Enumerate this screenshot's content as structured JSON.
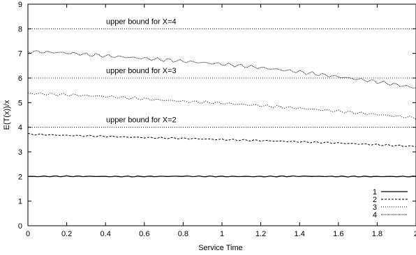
{
  "chart_data": {
    "type": "line",
    "title": "",
    "xlabel": "Service Time",
    "ylabel": "E(T(x))/x",
    "xlim": [
      0,
      2
    ],
    "ylim": [
      0,
      9
    ],
    "xticks": [
      "0",
      "0.2",
      "0.4",
      "0.6",
      "0.8",
      "1",
      "1.2",
      "1.4",
      "1.6",
      "1.8",
      "2"
    ],
    "yticks": [
      "0",
      "1",
      "2",
      "3",
      "4",
      "5",
      "6",
      "7",
      "8",
      "9"
    ],
    "legend_position": "bottom-right",
    "grid": false,
    "series": [
      {
        "name": "1",
        "style": "solid",
        "x": [
          0,
          0.2,
          0.4,
          0.6,
          0.8,
          1.0,
          1.2,
          1.4,
          1.6,
          1.8,
          2.0
        ],
        "values": [
          2.0,
          2.01,
          2.0,
          2.0,
          2.01,
          2.0,
          2.0,
          2.01,
          2.0,
          2.0,
          2.0
        ]
      },
      {
        "name": "2",
        "style": "dashed",
        "x": [
          0,
          0.2,
          0.4,
          0.6,
          0.8,
          1.0,
          1.2,
          1.4,
          1.6,
          1.8,
          2.0
        ],
        "values": [
          3.72,
          3.67,
          3.63,
          3.58,
          3.55,
          3.5,
          3.46,
          3.41,
          3.36,
          3.29,
          3.22
        ]
      },
      {
        "name": "3",
        "style": "dotted",
        "x": [
          0,
          0.2,
          0.4,
          0.6,
          0.8,
          1.0,
          1.2,
          1.4,
          1.6,
          1.8,
          2.0
        ],
        "values": [
          5.38,
          5.32,
          5.25,
          5.15,
          5.05,
          4.98,
          4.88,
          4.77,
          4.65,
          4.52,
          4.38
        ]
      },
      {
        "name": "4",
        "style": "dense-dotted",
        "x": [
          0,
          0.2,
          0.4,
          0.6,
          0.8,
          1.0,
          1.2,
          1.4,
          1.6,
          1.8,
          2.0
        ],
        "values": [
          7.08,
          7.02,
          6.9,
          6.8,
          6.68,
          6.57,
          6.42,
          6.25,
          6.05,
          5.85,
          5.6
        ]
      }
    ],
    "reference_lines": [
      {
        "y": 4,
        "label": "upper bound for X=2"
      },
      {
        "y": 6,
        "label": "upper bound for X=3"
      },
      {
        "y": 8,
        "label": "upper bound for X=4"
      }
    ]
  }
}
